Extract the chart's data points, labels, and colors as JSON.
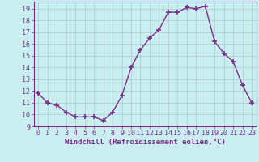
{
  "hours": [
    0,
    1,
    2,
    3,
    4,
    5,
    6,
    7,
    8,
    9,
    10,
    11,
    12,
    13,
    14,
    15,
    16,
    17,
    18,
    19,
    20,
    21,
    22,
    23
  ],
  "values": [
    11.8,
    11.0,
    10.8,
    10.2,
    9.8,
    9.8,
    9.8,
    9.5,
    10.2,
    11.6,
    14.0,
    15.5,
    16.5,
    17.2,
    18.7,
    18.7,
    19.1,
    19.0,
    19.2,
    16.2,
    15.2,
    14.5,
    12.5,
    11.0
  ],
  "line_color": "#7b2d8b",
  "marker": "+",
  "marker_size": 4,
  "line_width": 1.0,
  "bg_color": "#c8eef0",
  "grid_color": "#b0c8cc",
  "xlabel": "Windchill (Refroidissement éolien,°C)",
  "ylabel_ticks": [
    9,
    10,
    11,
    12,
    13,
    14,
    15,
    16,
    17,
    18,
    19
  ],
  "xlim": [
    -0.5,
    23.5
  ],
  "ylim": [
    9,
    19.6
  ],
  "tick_color": "#7b2d8b",
  "label_color": "#7b2d8b",
  "grid_linewidth": 0.5,
  "tick_fontsize": 6,
  "xlabel_fontsize": 6.5
}
